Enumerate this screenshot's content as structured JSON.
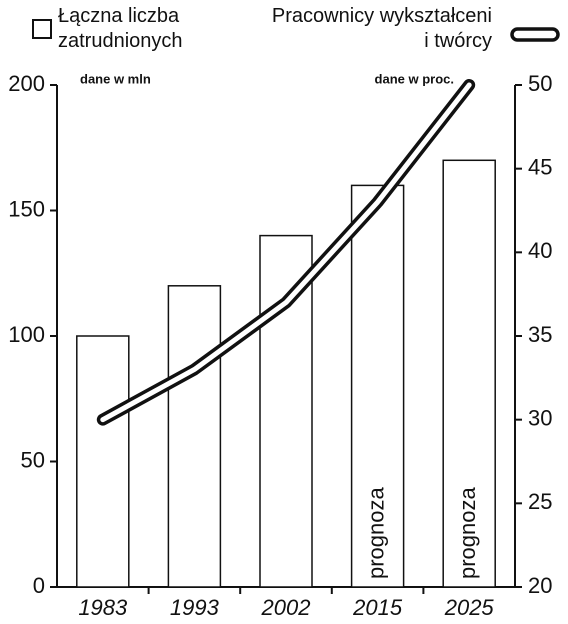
{
  "chart_data": {
    "type": "bar",
    "categories": [
      "1983",
      "1993",
      "2002",
      "2015",
      "2025"
    ],
    "series": [
      {
        "name": "Łączna liczba zatrudnionych",
        "type": "bar",
        "color": "#ffffff",
        "values": [
          100,
          120,
          140,
          160,
          170
        ]
      },
      {
        "name": "Pracownicy wykształceni i twórcy",
        "type": "line",
        "axis": "y2",
        "color": "#111111",
        "values": [
          30,
          33,
          37,
          43,
          50
        ]
      }
    ],
    "ylim": [
      0,
      200
    ],
    "yticks": [
      0,
      50,
      100,
      150,
      200
    ],
    "y2lim": [
      20,
      50
    ],
    "y2ticks": [
      20,
      25,
      30,
      35,
      40,
      45,
      50
    ],
    "y_unit_label": "dane w mln",
    "y2_unit_label": "dane w proc.",
    "annotations": [
      {
        "text": "prognoza",
        "x": "2015"
      },
      {
        "text": "prognoza",
        "x": "2025"
      }
    ]
  }
}
